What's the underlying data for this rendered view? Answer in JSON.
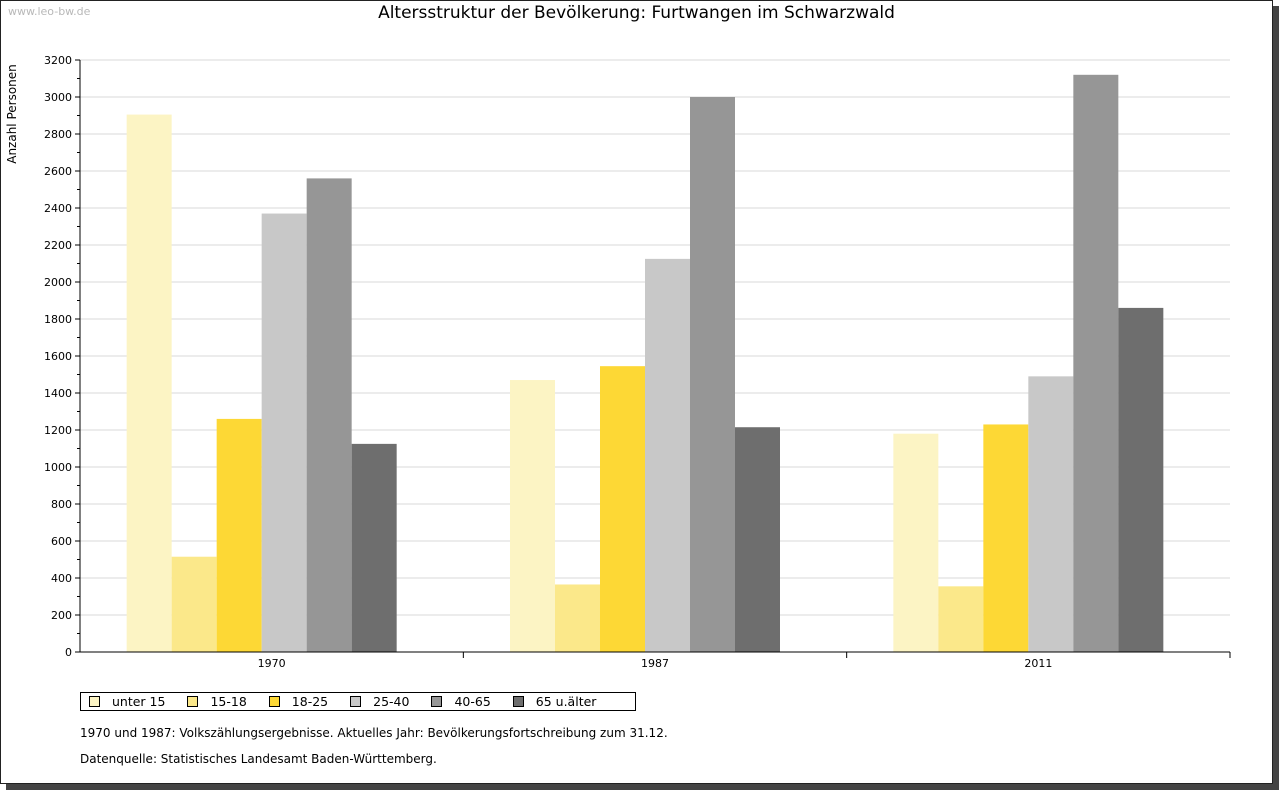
{
  "watermark": "www.leo-bw.de",
  "notes": {
    "line1": "1970 und 1987: Volkszählungsergebnisse. Aktuelles Jahr: Bevölkerungsfortschreibung zum 31.12.",
    "line2": "Datenquelle: Statistisches Landesamt Baden-Württemberg."
  },
  "chart_data": {
    "type": "bar",
    "title": "Altersstruktur der Bevölkerung: Furtwangen im Schwarzwald",
    "xlabel": "",
    "ylabel": "Anzahl Personen",
    "ylim": [
      0,
      3200
    ],
    "ytick_step": 200,
    "grid": true,
    "legend_position": "bottom",
    "categories": [
      "1970",
      "1987",
      "2011"
    ],
    "series": [
      {
        "name": "unter 15",
        "color": "#fcf4c4",
        "values": [
          2905,
          1470,
          1180
        ]
      },
      {
        "name": "15-18",
        "color": "#fbe88a",
        "values": [
          515,
          365,
          355
        ]
      },
      {
        "name": "18-25",
        "color": "#fdd835",
        "values": [
          1260,
          1545,
          1230
        ]
      },
      {
        "name": "25-40",
        "color": "#c8c8c8",
        "values": [
          2370,
          2125,
          1490
        ]
      },
      {
        "name": "40-65",
        "color": "#969696",
        "values": [
          2560,
          3000,
          3120
        ]
      },
      {
        "name": "65 u.älter",
        "color": "#6e6e6e",
        "values": [
          1125,
          1215,
          1860
        ]
      }
    ]
  }
}
